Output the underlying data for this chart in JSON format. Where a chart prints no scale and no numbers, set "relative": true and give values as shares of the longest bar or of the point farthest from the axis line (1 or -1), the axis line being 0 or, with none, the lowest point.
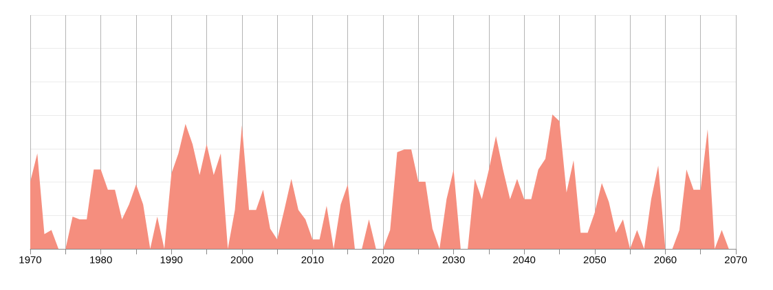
{
  "chart_data": {
    "type": "area",
    "relative": true,
    "grid": true,
    "xlim": [
      1970,
      2070
    ],
    "xticks": [
      1970,
      {
        "value": 1975,
        "label": null
      },
      1980,
      {
        "value": 1985,
        "label": null
      },
      1990,
      {
        "value": 1995,
        "label": null
      },
      2000,
      {
        "value": 2005,
        "label": null
      },
      2010,
      {
        "value": 2015,
        "label": null
      },
      2020,
      {
        "value": 2025,
        "label": null
      },
      2030,
      {
        "value": 2035,
        "label": null
      },
      2040,
      {
        "value": 2045,
        "label": null
      },
      2050,
      {
        "value": 2055,
        "label": null
      },
      2060,
      {
        "value": 2065,
        "label": null
      },
      2070
    ],
    "x": [
      1970,
      1971,
      1972,
      1973,
      1974,
      1975,
      1976,
      1977,
      1978,
      1979,
      1980,
      1981,
      1982,
      1983,
      1984,
      1985,
      1986,
      1987,
      1988,
      1989,
      1990,
      1991,
      1992,
      1993,
      1994,
      1995,
      1996,
      1997,
      1998,
      1999,
      2000,
      2001,
      2002,
      2003,
      2004,
      2005,
      2006,
      2007,
      2008,
      2009,
      2010,
      2011,
      2012,
      2013,
      2014,
      2015,
      2016,
      2017,
      2018,
      2019,
      2020,
      2021,
      2022,
      2023,
      2024,
      2025,
      2026,
      2027,
      2028,
      2029,
      2030,
      2031,
      2032,
      2033,
      2034,
      2035,
      2036,
      2037,
      2038,
      2039,
      2040,
      2041,
      2042,
      2043,
      2044,
      2045,
      2046,
      2047,
      2048,
      2049,
      2050,
      2051,
      2052,
      2053,
      2054,
      2055,
      2056,
      2057,
      2058,
      2059,
      2060,
      2061,
      2062,
      2063,
      2064,
      2065,
      2066,
      2067,
      2068,
      2069
    ],
    "series": [
      {
        "color": "#f58e7e",
        "values": [
          0.5,
          0.71,
          0.11,
          0.14,
          0,
          0,
          0.24,
          0.22,
          0.22,
          0.59,
          0.59,
          0.44,
          0.44,
          0.22,
          0.33,
          0.48,
          0.33,
          0,
          0.24,
          0,
          0.56,
          0.71,
          0.93,
          0.78,
          0.55,
          0.78,
          0.55,
          0.71,
          0,
          0.29,
          0.92,
          0.29,
          0.29,
          0.44,
          0.15,
          0.07,
          0.29,
          0.52,
          0.29,
          0.22,
          0.07,
          0.07,
          0.32,
          0,
          0.33,
          0.48,
          0,
          0,
          0.22,
          0,
          0,
          0.14,
          0.72,
          0.74,
          0.74,
          0.5,
          0.5,
          0.15,
          0,
          0.37,
          0.59,
          0,
          0,
          0.52,
          0.37,
          0.59,
          0.84,
          0.59,
          0.37,
          0.52,
          0.37,
          0.37,
          0.59,
          0.67,
          1,
          0.95,
          0.42,
          0.66,
          0.12,
          0.12,
          0.27,
          0.49,
          0.35,
          0.12,
          0.22,
          0,
          0.14,
          0,
          0.37,
          0.62,
          0,
          0,
          0.14,
          0.59,
          0.44,
          0.44,
          0.89,
          0,
          0.14,
          0
        ]
      }
    ]
  }
}
